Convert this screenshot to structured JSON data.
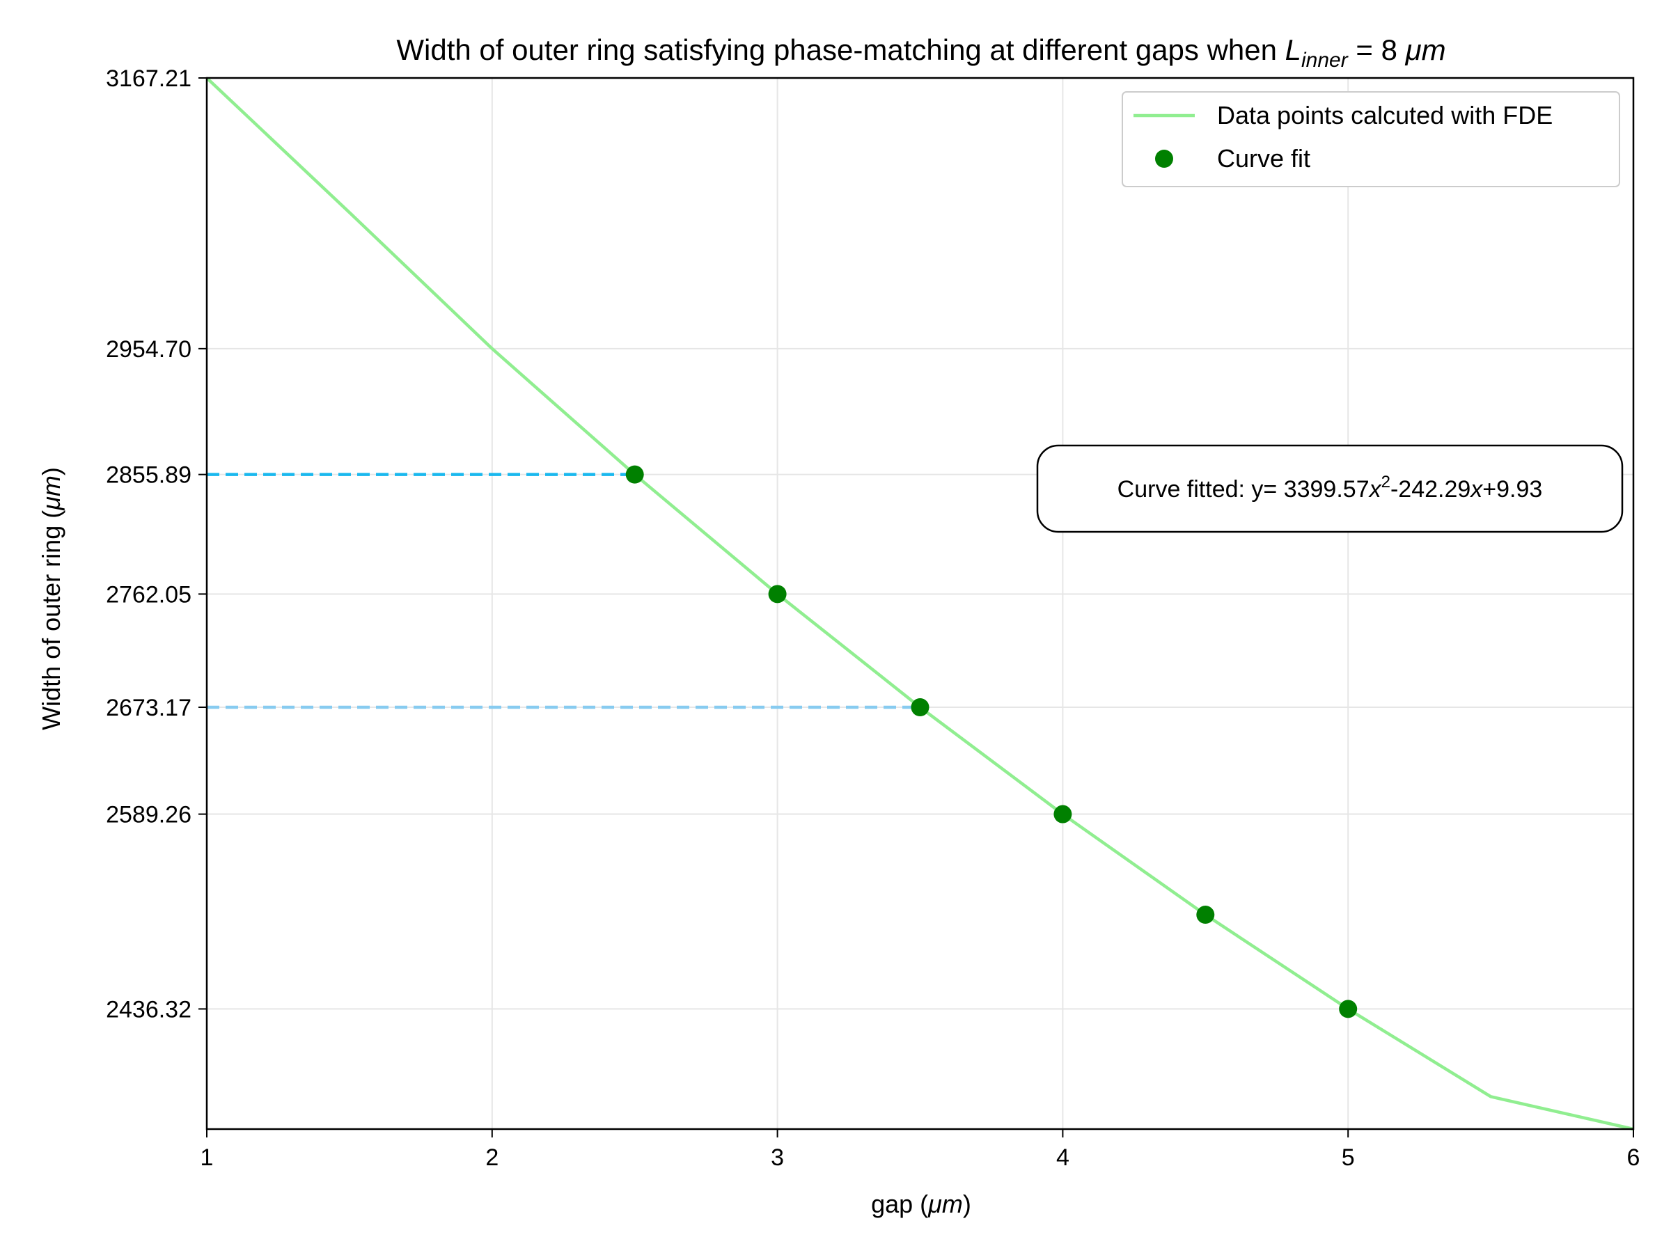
{
  "chart_data": {
    "type": "line",
    "title": {
      "prefix": "Width of outer ring satisfying phase-matching at different gaps when ",
      "symbol": "L",
      "subscript": "inner",
      "suffix": " = 8 ",
      "unit": "μm"
    },
    "xlabel": {
      "text": "gap (",
      "unit": "μm",
      "close": ")"
    },
    "ylabel": {
      "text": "Width of outer ring (",
      "unit": "μm",
      "close": ")"
    },
    "xlim": [
      1,
      6
    ],
    "ylim": [
      2342,
      3167.21
    ],
    "x_ticks": [
      1,
      2,
      3,
      4,
      5,
      6
    ],
    "y_ticks": [
      2436.32,
      2589.26,
      2673.17,
      2762.05,
      2855.89,
      2954.7,
      3167.21
    ],
    "y_tick_labels": [
      "2436.32",
      "2589.26",
      "2673.17",
      "2762.05",
      "2855.89",
      "2954.70",
      "3167.21"
    ],
    "grid": true,
    "legend_position": "top-right",
    "series": [
      {
        "name": "Data points calcuted with FDE",
        "kind": "line",
        "color": "#90ee90",
        "x": [
          1,
          1.5,
          2,
          2.5,
          3,
          3.5,
          4,
          4.5,
          5,
          5.5,
          6
        ],
        "y": [
          3167.21,
          3061.6,
          2954.7,
          2855.89,
          2762.05,
          2673.17,
          2589.26,
          2510.3,
          2436.32,
          2367.5,
          2342
        ]
      },
      {
        "name": "Curve fit",
        "kind": "scatter",
        "color": "#008000",
        "x": [
          2.5,
          3,
          3.5,
          4,
          4.5,
          5
        ],
        "y": [
          2855.89,
          2762.05,
          2673.17,
          2589.26,
          2510.3,
          2436.32
        ]
      }
    ],
    "reference_lines": [
      {
        "y": 2855.89,
        "x_end": 2.5,
        "color": "#1ab8ee",
        "style": "dashed"
      },
      {
        "y": 2673.17,
        "x_end": 3.5,
        "color": "#87cbf0",
        "style": "dashed"
      }
    ],
    "annotation": {
      "prefix": "Curve fitted: y= 3399.57",
      "var1": "x",
      "exponent": "2",
      "middle": "-242.29",
      "var2": "x",
      "suffix": "+9.93"
    }
  }
}
